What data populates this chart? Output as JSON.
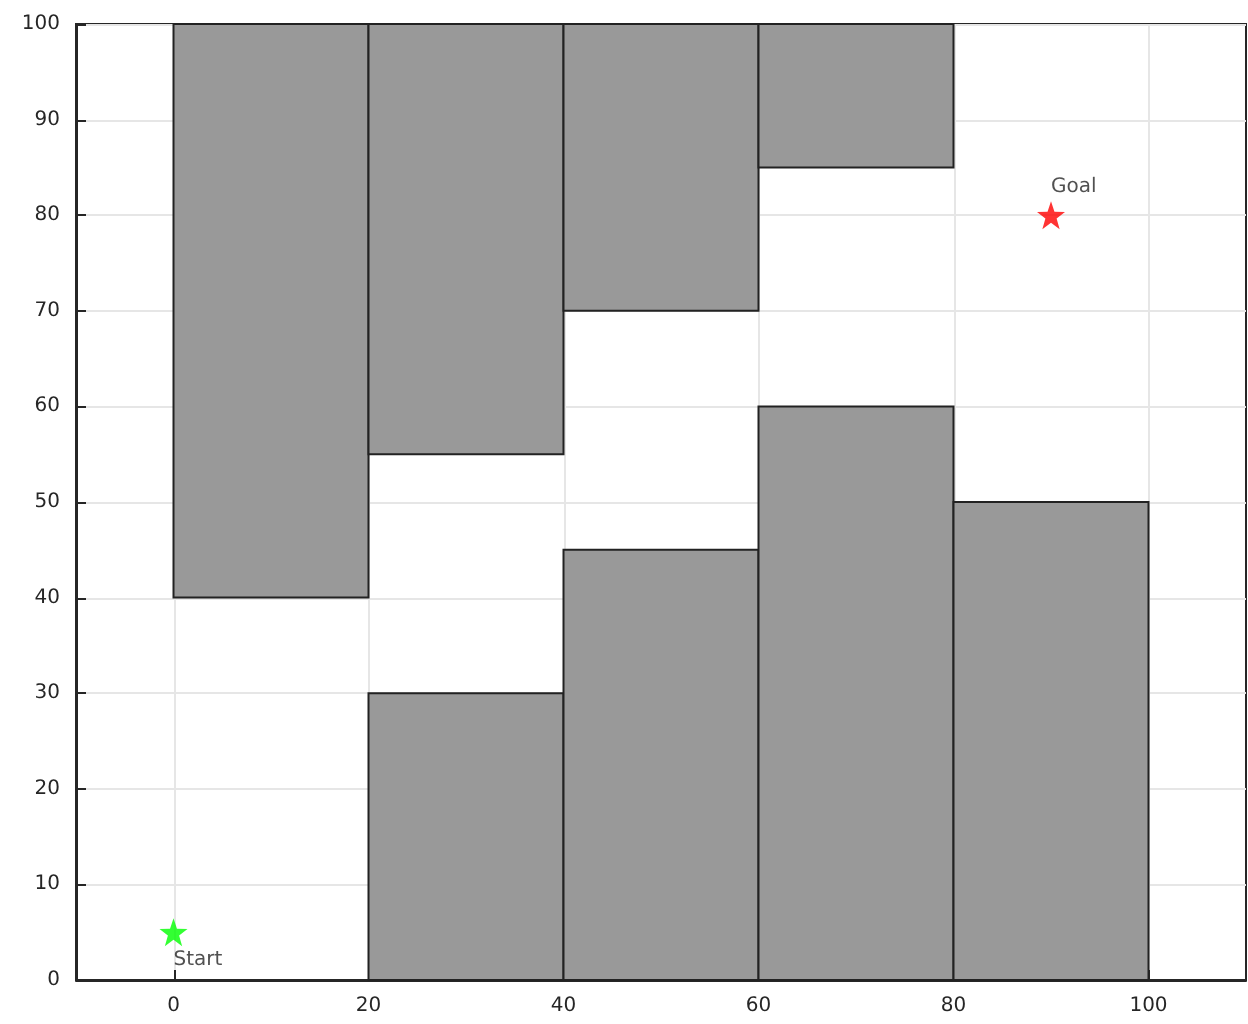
{
  "chart_data": {
    "type": "bar",
    "xlim": [
      -10,
      110
    ],
    "xticks": [
      0,
      20,
      40,
      60,
      80,
      100
    ],
    "ylim": [
      0,
      100
    ],
    "yticks": [
      0,
      10,
      20,
      30,
      40,
      50,
      60,
      70,
      80,
      90,
      100
    ],
    "grid": true,
    "marker": "star",
    "series": [
      {
        "color": "#999999",
        "x": [
          10,
          30,
          50,
          70
        ],
        "base": [
          40,
          55,
          70,
          85
        ],
        "values": [
          60,
          45,
          30,
          15
        ]
      },
      {
        "color": "#999999",
        "x": [
          30,
          50,
          70,
          90
        ],
        "base": [
          0,
          0,
          0,
          0
        ],
        "values": [
          30,
          45,
          60,
          50
        ]
      },
      {
        "type": "scatter",
        "name": "Start",
        "color": "#00ff00",
        "x": [
          0
        ],
        "values": [
          5
        ]
      },
      {
        "type": "scatter",
        "name": "Goal",
        "color": "#ff0000",
        "x": [
          90
        ],
        "values": [
          80
        ]
      }
    ]
  }
}
